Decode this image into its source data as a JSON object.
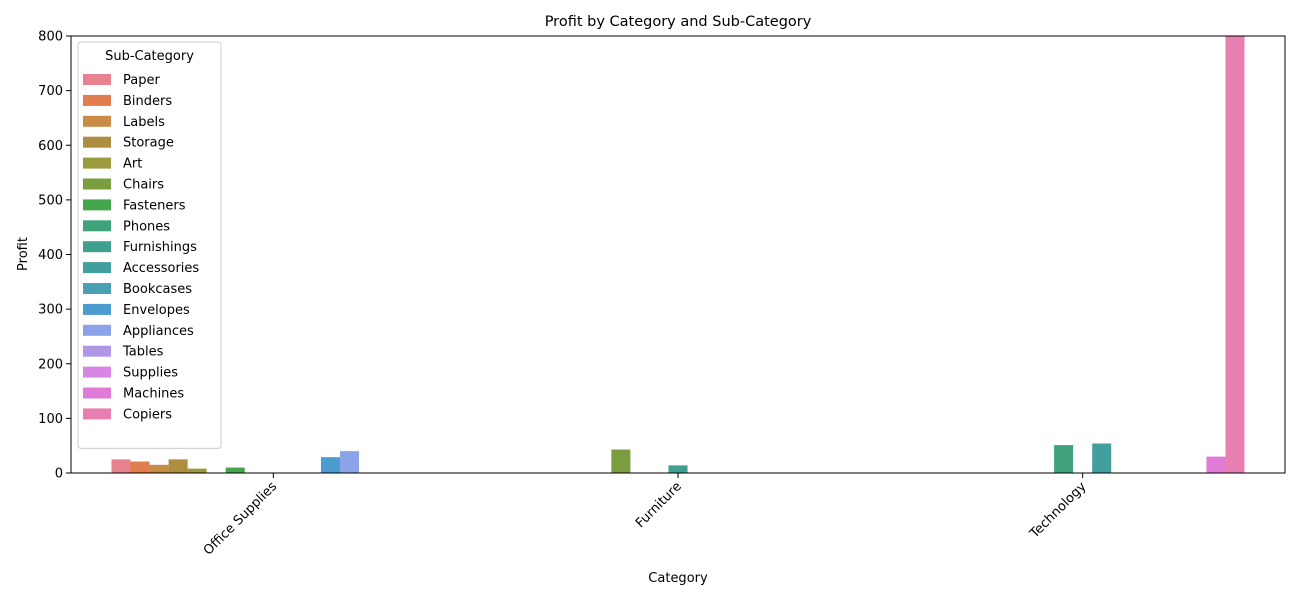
{
  "chart_data": {
    "type": "bar",
    "title": "Profit by Category and Sub-Category",
    "xlabel": "Category",
    "ylabel": "Profit",
    "ylim": [
      0,
      800
    ],
    "yticks": [
      0,
      100,
      200,
      300,
      400,
      500,
      600,
      700,
      800
    ],
    "categories": [
      "Office Supplies",
      "Furniture",
      "Technology"
    ],
    "legend": {
      "title": "Sub-Category",
      "placement": "top-left"
    },
    "series": [
      {
        "name": "Paper",
        "color": "#e8828f",
        "values": [
          25,
          0,
          0
        ]
      },
      {
        "name": "Binders",
        "color": "#e27d4f",
        "values": [
          21,
          0,
          0
        ]
      },
      {
        "name": "Labels",
        "color": "#c98c47",
        "values": [
          15,
          0,
          0
        ]
      },
      {
        "name": "Storage",
        "color": "#ad8e41",
        "values": [
          25,
          0,
          0
        ]
      },
      {
        "name": "Art",
        "color": "#9b9a3e",
        "values": [
          8,
          0,
          0
        ]
      },
      {
        "name": "Chairs",
        "color": "#7a9e3f",
        "values": [
          0,
          43,
          0
        ]
      },
      {
        "name": "Fasteners",
        "color": "#45a54a",
        "values": [
          10,
          0,
          0
        ]
      },
      {
        "name": "Phones",
        "color": "#3fa27a",
        "values": [
          0,
          0,
          51
        ]
      },
      {
        "name": "Furnishings",
        "color": "#40a08f",
        "values": [
          0,
          14,
          0
        ]
      },
      {
        "name": "Accessories",
        "color": "#439f9d",
        "values": [
          0,
          0,
          54
        ]
      },
      {
        "name": "Bookcases",
        "color": "#48a0b2",
        "values": [
          0,
          0,
          0
        ]
      },
      {
        "name": "Envelopes",
        "color": "#4b9bd0",
        "values": [
          29,
          0,
          0
        ]
      },
      {
        "name": "Appliances",
        "color": "#8ba3e8",
        "values": [
          40,
          0,
          0
        ]
      },
      {
        "name": "Tables",
        "color": "#b097e6",
        "values": [
          0,
          0,
          0
        ]
      },
      {
        "name": "Supplies",
        "color": "#d886e3",
        "values": [
          0,
          0,
          0
        ]
      },
      {
        "name": "Machines",
        "color": "#e07bd7",
        "values": [
          0,
          0,
          30
        ]
      },
      {
        "name": "Copiers",
        "color": "#e87fb1",
        "values": [
          0,
          0,
          800
        ]
      }
    ]
  }
}
